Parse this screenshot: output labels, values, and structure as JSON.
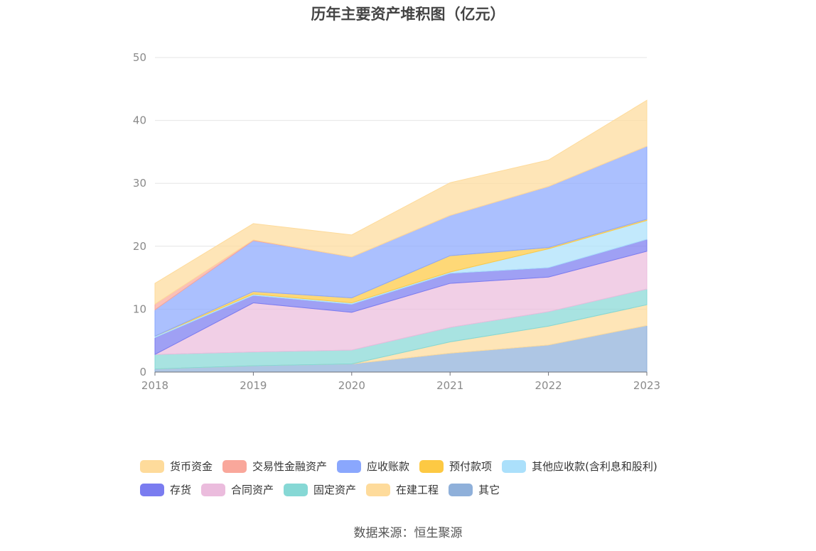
{
  "chart_data": {
    "type": "area",
    "stacked": true,
    "title": "历年主要资产堆积图（亿元）",
    "source": "数据来源：恒生聚源",
    "x": [
      "2018",
      "2019",
      "2020",
      "2021",
      "2022",
      "2023"
    ],
    "ylim": [
      0,
      50
    ],
    "yticks": [
      "0",
      "10",
      "20",
      "30",
      "40",
      "50"
    ],
    "grid": true,
    "legend_position": "bottom",
    "series": [
      {
        "name": "其它",
        "color": "#8fb0da",
        "values": [
          0.5,
          1.0,
          1.3,
          3.0,
          4.3,
          7.4
        ]
      },
      {
        "name": "在建工程",
        "color": "#fedb9b",
        "values": [
          0.0,
          0.0,
          0.0,
          1.8,
          3.0,
          3.3
        ]
      },
      {
        "name": "固定资产",
        "color": "#86d8d5",
        "values": [
          2.3,
          2.2,
          2.2,
          2.3,
          2.3,
          2.5
        ]
      },
      {
        "name": "合同资产",
        "color": "#ebbcdd",
        "values": [
          0.0,
          7.8,
          6.0,
          7.0,
          5.5,
          6.0
        ]
      },
      {
        "name": "存货",
        "color": "#7a7cf0",
        "values": [
          2.7,
          1.2,
          1.3,
          1.6,
          1.5,
          1.9
        ]
      },
      {
        "name": "其他应收款(含利息和股利)",
        "color": "#abe0fb",
        "values": [
          0.2,
          0.2,
          0.2,
          0.2,
          3.0,
          3.0
        ]
      },
      {
        "name": "预付款项",
        "color": "#fdc943",
        "values": [
          0.0,
          0.4,
          0.8,
          2.6,
          0.2,
          0.2
        ]
      },
      {
        "name": "应收账款",
        "color": "#8aa7fd",
        "values": [
          4.2,
          8.1,
          6.5,
          6.4,
          9.7,
          11.6
        ]
      },
      {
        "name": "交易性金融资产",
        "color": "#f9a79b",
        "values": [
          0.9,
          0.1,
          0.0,
          0.0,
          0.0,
          0.0
        ]
      },
      {
        "name": "货币资金",
        "color": "#fedb9b",
        "values": [
          3.3,
          2.6,
          3.5,
          5.2,
          4.2,
          7.3
        ]
      }
    ],
    "legend_rows": [
      [
        "货币资金",
        "交易性金融资产",
        "应收账款",
        "预付款项",
        "其他应收款(含利息和股利)"
      ],
      [
        "存货",
        "合同资产",
        "固定资产",
        "在建工程",
        "其它"
      ]
    ]
  }
}
